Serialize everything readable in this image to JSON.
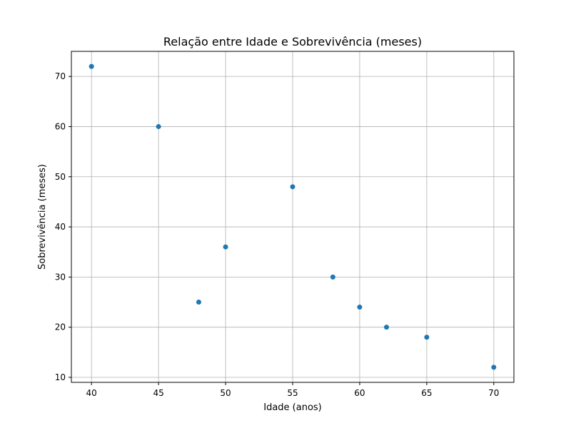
{
  "chart_data": {
    "type": "scatter",
    "title": "Relação entre Idade e Sobrevivência (meses)",
    "xlabel": "Idade (anos)",
    "ylabel": "Sobrevivência (meses)",
    "xlim": [
      38.5,
      71.5
    ],
    "ylim": [
      9,
      75
    ],
    "xticks": [
      40,
      45,
      50,
      55,
      60,
      65,
      70
    ],
    "yticks": [
      10,
      20,
      30,
      40,
      50,
      60,
      70
    ],
    "grid": true,
    "marker_color": "#1f77b4",
    "series": [
      {
        "x": [
          40,
          45,
          48,
          50,
          55,
          58,
          60,
          62,
          65,
          70
        ],
        "y": [
          72,
          60,
          25,
          36,
          48,
          30,
          24,
          20,
          18,
          12
        ]
      }
    ]
  }
}
